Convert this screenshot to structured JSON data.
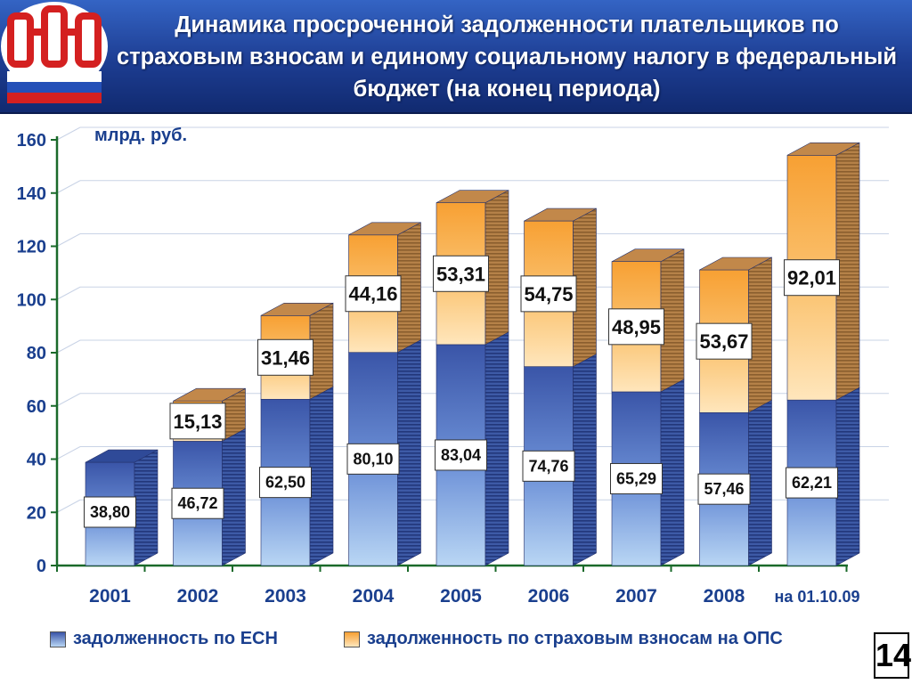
{
  "header": {
    "title": "Динамика просроченной задолженности плательщиков по страховым взносам и единому социальному налогу в федеральный бюджет (на конец периода)"
  },
  "logo": {
    "name": "pfr-logo-icon"
  },
  "chart_data": {
    "type": "bar",
    "stacked": true,
    "unit_label": "млрд. руб.",
    "categories": [
      "2001",
      "2002",
      "2003",
      "2004",
      "2005",
      "2006",
      "2007",
      "2008",
      "на 01.10.09"
    ],
    "series": [
      {
        "name": "задолженность по ЕСН",
        "values": [
          38.8,
          46.72,
          62.5,
          80.1,
          83.04,
          74.76,
          65.29,
          57.46,
          62.21
        ],
        "labels": [
          "38,80",
          "46,72",
          "62,50",
          "80,10",
          "83,04",
          "74,76",
          "65,29",
          "57,46",
          "62,21"
        ],
        "color": "#5b7ec8"
      },
      {
        "name": "задолженность по страховым взносам на ОПС",
        "values": [
          null,
          15.13,
          31.46,
          44.16,
          53.31,
          54.75,
          48.95,
          53.67,
          92.01
        ],
        "labels": [
          "",
          "15,13",
          "31,46",
          "44,16",
          "53,31",
          "54,75",
          "48,95",
          "53,67",
          "92,01"
        ],
        "color": "#f5a93e"
      }
    ],
    "ylim": [
      0,
      160
    ],
    "yticks": [
      "0",
      "20",
      "40",
      "60",
      "80",
      "100",
      "120",
      "140",
      "160"
    ],
    "grid": true,
    "legend_position": "bottom"
  },
  "legend": {
    "esn_label": "задолженность по ЕСН",
    "ops_label": "задолженность по страховым взносам на ОПС"
  },
  "page_number": "14"
}
